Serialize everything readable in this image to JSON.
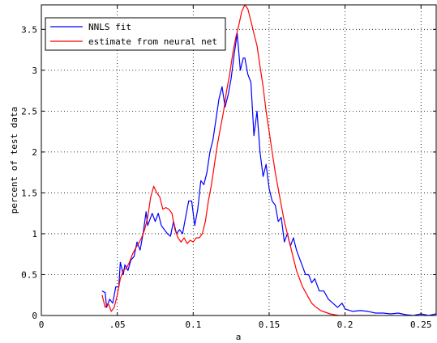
{
  "chart_data": {
    "type": "line",
    "title": "",
    "xlabel": "a",
    "ylabel": "percent of test data",
    "xlim": [
      0,
      0.26
    ],
    "ylim": [
      0,
      3.8
    ],
    "grid": true,
    "legend_position": "top-left",
    "xticks": [
      {
        "value": 0,
        "label": "0"
      },
      {
        "value": 0.05,
        "label": ".05"
      },
      {
        "value": 0.1,
        "label": "0.1"
      },
      {
        "value": 0.15,
        "label": "0.15"
      },
      {
        "value": 0.2,
        "label": "0.2"
      },
      {
        "value": 0.25,
        "label": "0.25"
      }
    ],
    "yticks": [
      {
        "value": 0,
        "label": "0"
      },
      {
        "value": 0.5,
        "label": "0.5"
      },
      {
        "value": 1,
        "label": "1"
      },
      {
        "value": 1.5,
        "label": "1.5"
      },
      {
        "value": 2,
        "label": "2"
      },
      {
        "value": 2.5,
        "label": "2.5"
      },
      {
        "value": 3,
        "label": "3"
      },
      {
        "value": 3.5,
        "label": "3.5"
      }
    ],
    "series": [
      {
        "name": "NNLS fit",
        "color": "#0000ff",
        "x": [
          0.04,
          0.042,
          0.043,
          0.045,
          0.047,
          0.049,
          0.051,
          0.052,
          0.054,
          0.055,
          0.057,
          0.059,
          0.061,
          0.063,
          0.065,
          0.067,
          0.069,
          0.07,
          0.072,
          0.073,
          0.075,
          0.077,
          0.079,
          0.081,
          0.083,
          0.085,
          0.087,
          0.089,
          0.091,
          0.093,
          0.095,
          0.097,
          0.099,
          0.101,
          0.103,
          0.105,
          0.107,
          0.109,
          0.111,
          0.113,
          0.115,
          0.117,
          0.119,
          0.121,
          0.123,
          0.125,
          0.127,
          0.129,
          0.131,
          0.133,
          0.134,
          0.136,
          0.138,
          0.14,
          0.142,
          0.144,
          0.146,
          0.148,
          0.15,
          0.152,
          0.154,
          0.156,
          0.158,
          0.16,
          0.162,
          0.164,
          0.166,
          0.168,
          0.17,
          0.172,
          0.174,
          0.176,
          0.178,
          0.18,
          0.183,
          0.186,
          0.189,
          0.192,
          0.195,
          0.198,
          0.2,
          0.205,
          0.21,
          0.215,
          0.22,
          0.225,
          0.23,
          0.235,
          0.24,
          0.245,
          0.25,
          0.255,
          0.26
        ],
        "y": [
          0.3,
          0.28,
          0.1,
          0.2,
          0.15,
          0.35,
          0.35,
          0.65,
          0.5,
          0.62,
          0.55,
          0.68,
          0.72,
          0.9,
          0.8,
          1.0,
          1.27,
          1.1,
          1.2,
          1.25,
          1.15,
          1.25,
          1.1,
          1.05,
          1.0,
          0.97,
          1.15,
          1.0,
          1.05,
          1.0,
          1.2,
          1.4,
          1.4,
          1.1,
          1.3,
          1.65,
          1.6,
          1.75,
          2.0,
          2.15,
          2.4,
          2.65,
          2.8,
          2.55,
          2.7,
          2.9,
          3.2,
          3.45,
          3.0,
          3.15,
          3.15,
          2.95,
          2.85,
          2.2,
          2.5,
          2.0,
          1.7,
          1.85,
          1.55,
          1.4,
          1.35,
          1.15,
          1.2,
          0.9,
          1.0,
          0.85,
          0.95,
          0.8,
          0.7,
          0.6,
          0.5,
          0.5,
          0.4,
          0.45,
          0.3,
          0.3,
          0.2,
          0.15,
          0.1,
          0.15,
          0.08,
          0.05,
          0.06,
          0.05,
          0.03,
          0.03,
          0.02,
          0.03,
          0.01,
          0.0,
          0.02,
          0.0,
          0.02
        ]
      },
      {
        "name": "estimate from neural net",
        "color": "#ff0000",
        "x": [
          0.04,
          0.042,
          0.044,
          0.046,
          0.048,
          0.05,
          0.052,
          0.054,
          0.056,
          0.058,
          0.06,
          0.062,
          0.064,
          0.066,
          0.068,
          0.07,
          0.072,
          0.074,
          0.076,
          0.078,
          0.08,
          0.082,
          0.084,
          0.086,
          0.088,
          0.09,
          0.092,
          0.094,
          0.096,
          0.098,
          0.1,
          0.102,
          0.104,
          0.106,
          0.108,
          0.11,
          0.112,
          0.114,
          0.116,
          0.118,
          0.12,
          0.122,
          0.124,
          0.126,
          0.128,
          0.13,
          0.132,
          0.134,
          0.136,
          0.138,
          0.14,
          0.142,
          0.144,
          0.146,
          0.148,
          0.15,
          0.152,
          0.154,
          0.156,
          0.158,
          0.16,
          0.162,
          0.164,
          0.166,
          0.168,
          0.17,
          0.172,
          0.175,
          0.178,
          0.181,
          0.184,
          0.187,
          0.19,
          0.193,
          0.196,
          0.2,
          0.205,
          0.21,
          0.22
        ],
        "y": [
          0.25,
          0.1,
          0.15,
          0.05,
          0.1,
          0.25,
          0.45,
          0.55,
          0.58,
          0.65,
          0.75,
          0.82,
          0.88,
          0.95,
          1.05,
          1.2,
          1.45,
          1.58,
          1.5,
          1.45,
          1.3,
          1.32,
          1.3,
          1.25,
          1.05,
          0.95,
          0.9,
          0.95,
          0.88,
          0.92,
          0.9,
          0.95,
          0.95,
          1.0,
          1.15,
          1.4,
          1.6,
          1.85,
          2.1,
          2.3,
          2.5,
          2.75,
          2.95,
          3.2,
          3.4,
          3.55,
          3.72,
          3.8,
          3.75,
          3.6,
          3.45,
          3.3,
          3.05,
          2.8,
          2.5,
          2.25,
          2.0,
          1.75,
          1.55,
          1.35,
          1.15,
          1.0,
          0.85,
          0.7,
          0.55,
          0.45,
          0.35,
          0.25,
          0.15,
          0.1,
          0.06,
          0.04,
          0.02,
          0.01,
          0.0,
          0.0,
          0.0,
          0.0,
          0.0
        ]
      }
    ]
  }
}
